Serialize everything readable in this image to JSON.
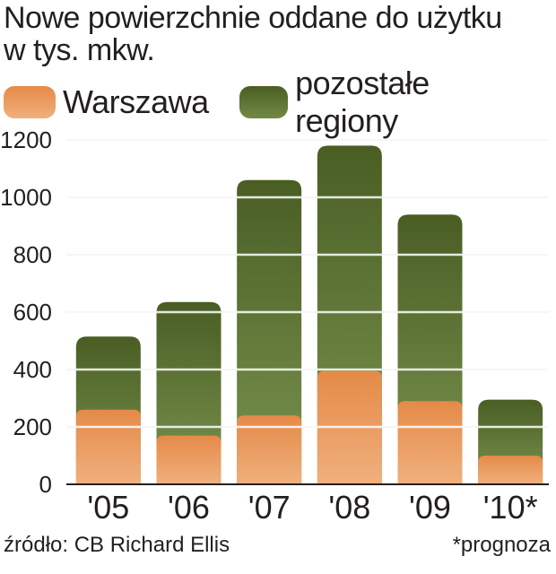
{
  "title": {
    "line1": "Nowe powierzchnie oddane do użytku",
    "line2": "w tys. mkw."
  },
  "colors": {
    "warszawa": "#e9965a",
    "pozostale": "#556b2c",
    "grid": "#ffffff"
  },
  "footer": {
    "source": "źródło: CB Richard Ellis",
    "note": "*prognoza"
  },
  "chart_data": {
    "type": "bar",
    "stacked": true,
    "categories": [
      "'05",
      "'06",
      "'07",
      "'08",
      "'09",
      "'10*"
    ],
    "series": [
      {
        "name": "Warszawa",
        "values": [
          260,
          170,
          240,
          395,
          290,
          100
        ]
      },
      {
        "name": "pozostałe regiony",
        "values": [
          255,
          465,
          820,
          785,
          650,
          195
        ]
      }
    ],
    "ylim": [
      0,
      1200
    ],
    "yticks": [
      0,
      200,
      400,
      600,
      800,
      1000,
      1200
    ],
    "grid": true,
    "legend": "top-left"
  }
}
